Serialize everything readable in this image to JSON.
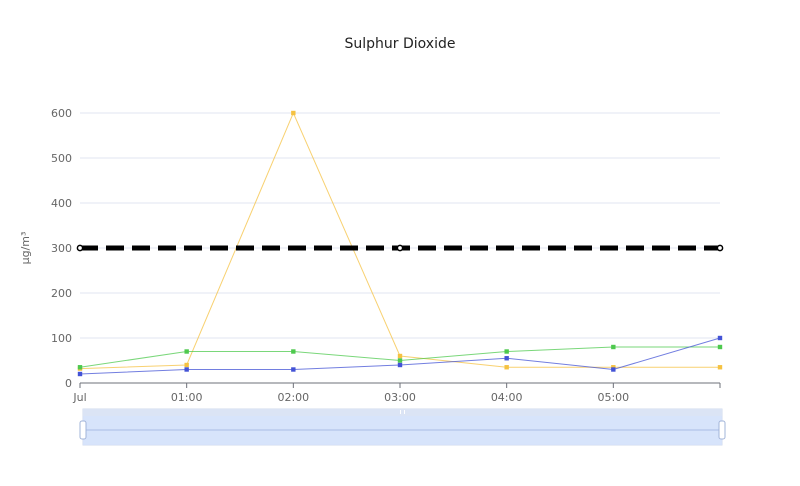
{
  "chart_data": {
    "type": "line",
    "title": "Sulphur Dioxide",
    "ylabel": "µg/m³",
    "xlabel": "",
    "ylim": [
      0,
      600
    ],
    "yticks": [
      0,
      100,
      200,
      300,
      400,
      500,
      600
    ],
    "grid": true,
    "x": [
      0,
      1,
      2,
      3,
      4,
      5,
      6
    ],
    "xtick_labels": [
      "Jul",
      "01:00",
      "02:00",
      "03:00",
      "04:00",
      "05:00",
      ""
    ],
    "series": [
      {
        "color": "#f5c242",
        "values": [
          32,
          40,
          600,
          60,
          35,
          35,
          35
        ]
      },
      {
        "color": "#4ec94e",
        "values": [
          35,
          70,
          70,
          50,
          70,
          80,
          80
        ]
      },
      {
        "color": "#4353d6",
        "values": [
          20,
          30,
          30,
          40,
          55,
          30,
          100
        ]
      },
      {
        "color": "#000000",
        "style": "dashed",
        "values": [
          300,
          null,
          null,
          300,
          null,
          null,
          300
        ]
      }
    ]
  },
  "data_zoom": {
    "start_percent": 0,
    "end_percent": 100,
    "accent": "#d4e1fb"
  }
}
